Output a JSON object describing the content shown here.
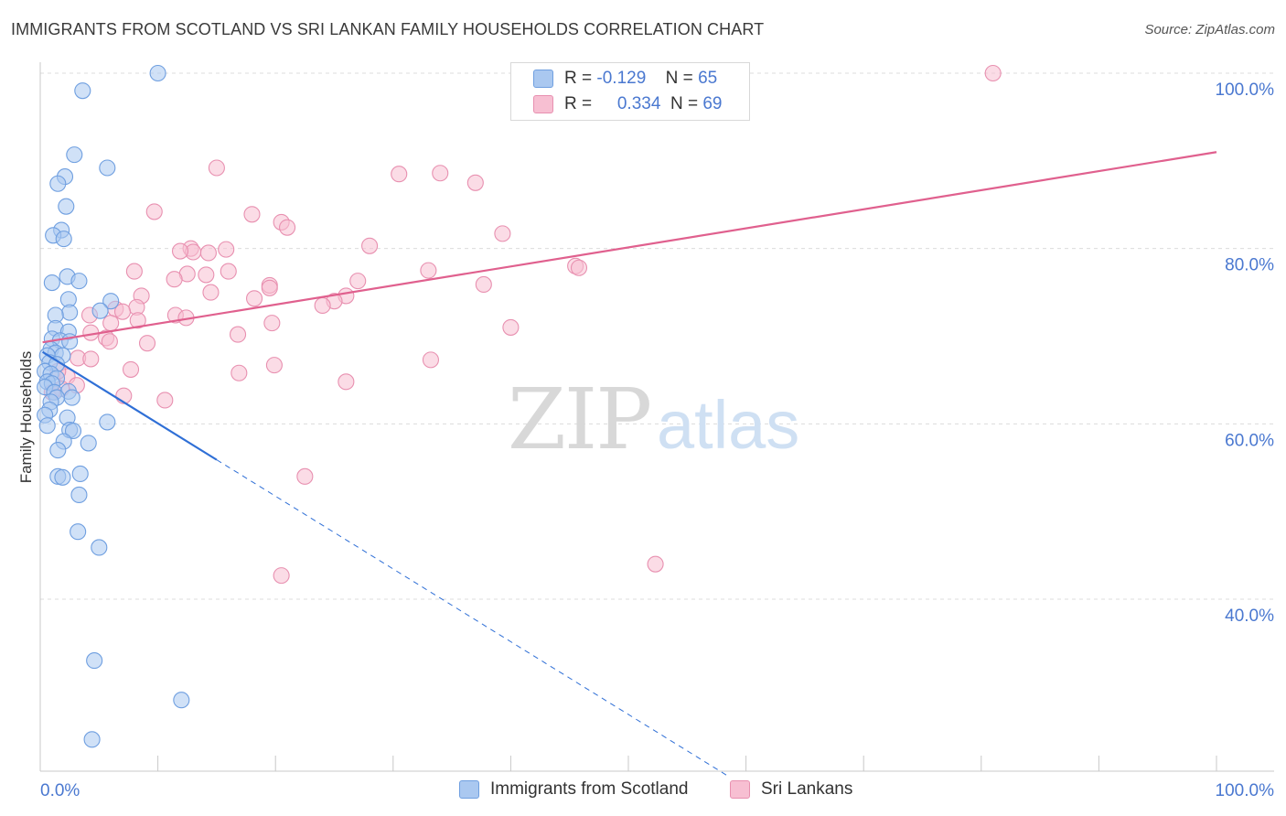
{
  "header": {
    "title": "IMMIGRANTS FROM SCOTLAND VS SRI LANKAN FAMILY HOUSEHOLDS CORRELATION CHART",
    "source": "Source: ZipAtlas.com"
  },
  "watermark": {
    "zip": "ZIP",
    "atlas": "atlas"
  },
  "colors": {
    "blue_fill": "#aac8f0",
    "blue_stroke": "#6f9fe0",
    "blue_line": "#2f6fd6",
    "pink_fill": "#f7bfd2",
    "pink_stroke": "#e890b0",
    "pink_line": "#e0608e",
    "axis_text": "#4a78d0",
    "grid": "#dcdcdc"
  },
  "correlation_box": {
    "series": [
      {
        "r_label": "R =",
        "r_value": "-0.129",
        "n_label": "N =",
        "n_value": "65"
      },
      {
        "r_label": "R =",
        "r_value": "0.334",
        "n_label": "N =",
        "n_value": "69"
      }
    ]
  },
  "legend": {
    "items": [
      {
        "label": "Immigrants from Scotland"
      },
      {
        "label": "Sri Lankans"
      }
    ]
  },
  "chart_data": {
    "type": "scatter",
    "title": "IMMIGRANTS FROM SCOTLAND VS SRI LANKAN FAMILY HOUSEHOLDS CORRELATION CHART",
    "xlabel": "",
    "ylabel": "Family Households",
    "xlim": [
      0,
      100
    ],
    "ylim": [
      20,
      102
    ],
    "x_tick_labels": [
      "0.0%",
      "100.0%"
    ],
    "y_ticks": [
      40,
      60,
      80,
      100
    ],
    "y_tick_labels": [
      "40.0%",
      "60.0%",
      "80.0%",
      "100.0%"
    ],
    "grid": true,
    "series": [
      {
        "name": "Immigrants from Scotland",
        "r": -0.129,
        "n": 65,
        "trend_solid": {
          "x": [
            0.2,
            15.0
          ],
          "y": [
            68.2,
            55.9
          ]
        },
        "trend_dashed": {
          "x": [
            15.0,
            58.5
          ],
          "y": [
            55.9,
            19.8
          ]
        },
        "points": [
          [
            10.0,
            100.0
          ],
          [
            3.6,
            98.0
          ],
          [
            2.9,
            90.7
          ],
          [
            5.7,
            89.2
          ],
          [
            2.1,
            88.2
          ],
          [
            1.5,
            87.4
          ],
          [
            2.2,
            84.8
          ],
          [
            1.8,
            82.1
          ],
          [
            1.1,
            81.5
          ],
          [
            2.0,
            81.1
          ],
          [
            2.3,
            76.8
          ],
          [
            1.0,
            76.1
          ],
          [
            3.3,
            76.3
          ],
          [
            2.4,
            74.2
          ],
          [
            6.0,
            74.0
          ],
          [
            5.1,
            72.9
          ],
          [
            2.5,
            72.7
          ],
          [
            1.3,
            72.4
          ],
          [
            1.3,
            70.9
          ],
          [
            2.4,
            70.5
          ],
          [
            1.0,
            69.7
          ],
          [
            1.7,
            69.5
          ],
          [
            2.5,
            69.4
          ],
          [
            0.9,
            68.5
          ],
          [
            1.3,
            68.1
          ],
          [
            0.6,
            67.8
          ],
          [
            1.9,
            67.8
          ],
          [
            0.8,
            67.0
          ],
          [
            1.4,
            66.8
          ],
          [
            0.4,
            66.0
          ],
          [
            0.9,
            65.7
          ],
          [
            1.4,
            65.2
          ],
          [
            0.6,
            64.8
          ],
          [
            1.0,
            64.6
          ],
          [
            0.4,
            64.2
          ],
          [
            1.2,
            63.6
          ],
          [
            2.4,
            63.7
          ],
          [
            1.4,
            63.0
          ],
          [
            0.9,
            62.5
          ],
          [
            2.7,
            63.0
          ],
          [
            0.8,
            61.6
          ],
          [
            0.4,
            61.0
          ],
          [
            2.3,
            60.7
          ],
          [
            5.7,
            60.2
          ],
          [
            0.6,
            59.8
          ],
          [
            2.5,
            59.3
          ],
          [
            2.8,
            59.2
          ],
          [
            2.0,
            58.0
          ],
          [
            4.1,
            57.8
          ],
          [
            1.5,
            57.0
          ],
          [
            3.4,
            54.3
          ],
          [
            1.5,
            54.0
          ],
          [
            1.9,
            53.9
          ],
          [
            3.3,
            51.9
          ],
          [
            3.2,
            47.7
          ],
          [
            5.0,
            45.9
          ],
          [
            4.6,
            33.0
          ],
          [
            12.0,
            28.5
          ],
          [
            4.4,
            24.0
          ]
        ]
      },
      {
        "name": "Sri Lankans",
        "r": 0.334,
        "n": 69,
        "trend_solid": {
          "x": [
            0.2,
            100.0
          ],
          "y": [
            69.3,
            91.0
          ]
        },
        "points": [
          [
            81.0,
            100.0
          ],
          [
            15.0,
            89.2
          ],
          [
            30.5,
            88.5
          ],
          [
            34.0,
            88.6
          ],
          [
            37.0,
            87.5
          ],
          [
            9.7,
            84.2
          ],
          [
            18.0,
            83.9
          ],
          [
            20.5,
            83.0
          ],
          [
            21.0,
            82.4
          ],
          [
            39.3,
            81.7
          ],
          [
            28.0,
            80.3
          ],
          [
            12.8,
            80.0
          ],
          [
            15.8,
            79.9
          ],
          [
            13.0,
            79.6
          ],
          [
            14.3,
            79.5
          ],
          [
            11.9,
            79.7
          ],
          [
            45.5,
            78.0
          ],
          [
            45.8,
            77.8
          ],
          [
            33.0,
            77.5
          ],
          [
            8.0,
            77.4
          ],
          [
            16.0,
            77.4
          ],
          [
            12.5,
            77.1
          ],
          [
            14.1,
            77.0
          ],
          [
            11.4,
            76.5
          ],
          [
            19.5,
            75.8
          ],
          [
            27.0,
            76.3
          ],
          [
            19.5,
            75.5
          ],
          [
            37.7,
            75.9
          ],
          [
            14.5,
            75.0
          ],
          [
            26.0,
            74.6
          ],
          [
            25.0,
            74.0
          ],
          [
            8.6,
            74.6
          ],
          [
            18.2,
            74.3
          ],
          [
            24.0,
            73.5
          ],
          [
            8.2,
            73.3
          ],
          [
            6.4,
            73.1
          ],
          [
            7.0,
            72.8
          ],
          [
            11.5,
            72.4
          ],
          [
            4.2,
            72.4
          ],
          [
            12.4,
            72.1
          ],
          [
            8.3,
            71.8
          ],
          [
            6.0,
            71.5
          ],
          [
            19.7,
            71.5
          ],
          [
            40.0,
            71.0
          ],
          [
            4.3,
            70.4
          ],
          [
            16.8,
            70.2
          ],
          [
            5.6,
            69.8
          ],
          [
            5.9,
            69.4
          ],
          [
            9.1,
            69.2
          ],
          [
            3.2,
            67.5
          ],
          [
            4.3,
            67.4
          ],
          [
            33.2,
            67.3
          ],
          [
            19.9,
            66.7
          ],
          [
            7.7,
            66.2
          ],
          [
            16.9,
            65.8
          ],
          [
            26.0,
            64.8
          ],
          [
            2.3,
            65.4
          ],
          [
            1.5,
            66.0
          ],
          [
            3.1,
            64.4
          ],
          [
            1.8,
            64.0
          ],
          [
            1.0,
            63.6
          ],
          [
            7.1,
            63.2
          ],
          [
            10.6,
            62.7
          ],
          [
            22.5,
            54.0
          ],
          [
            52.3,
            44.0
          ],
          [
            20.5,
            42.7
          ]
        ]
      }
    ]
  }
}
